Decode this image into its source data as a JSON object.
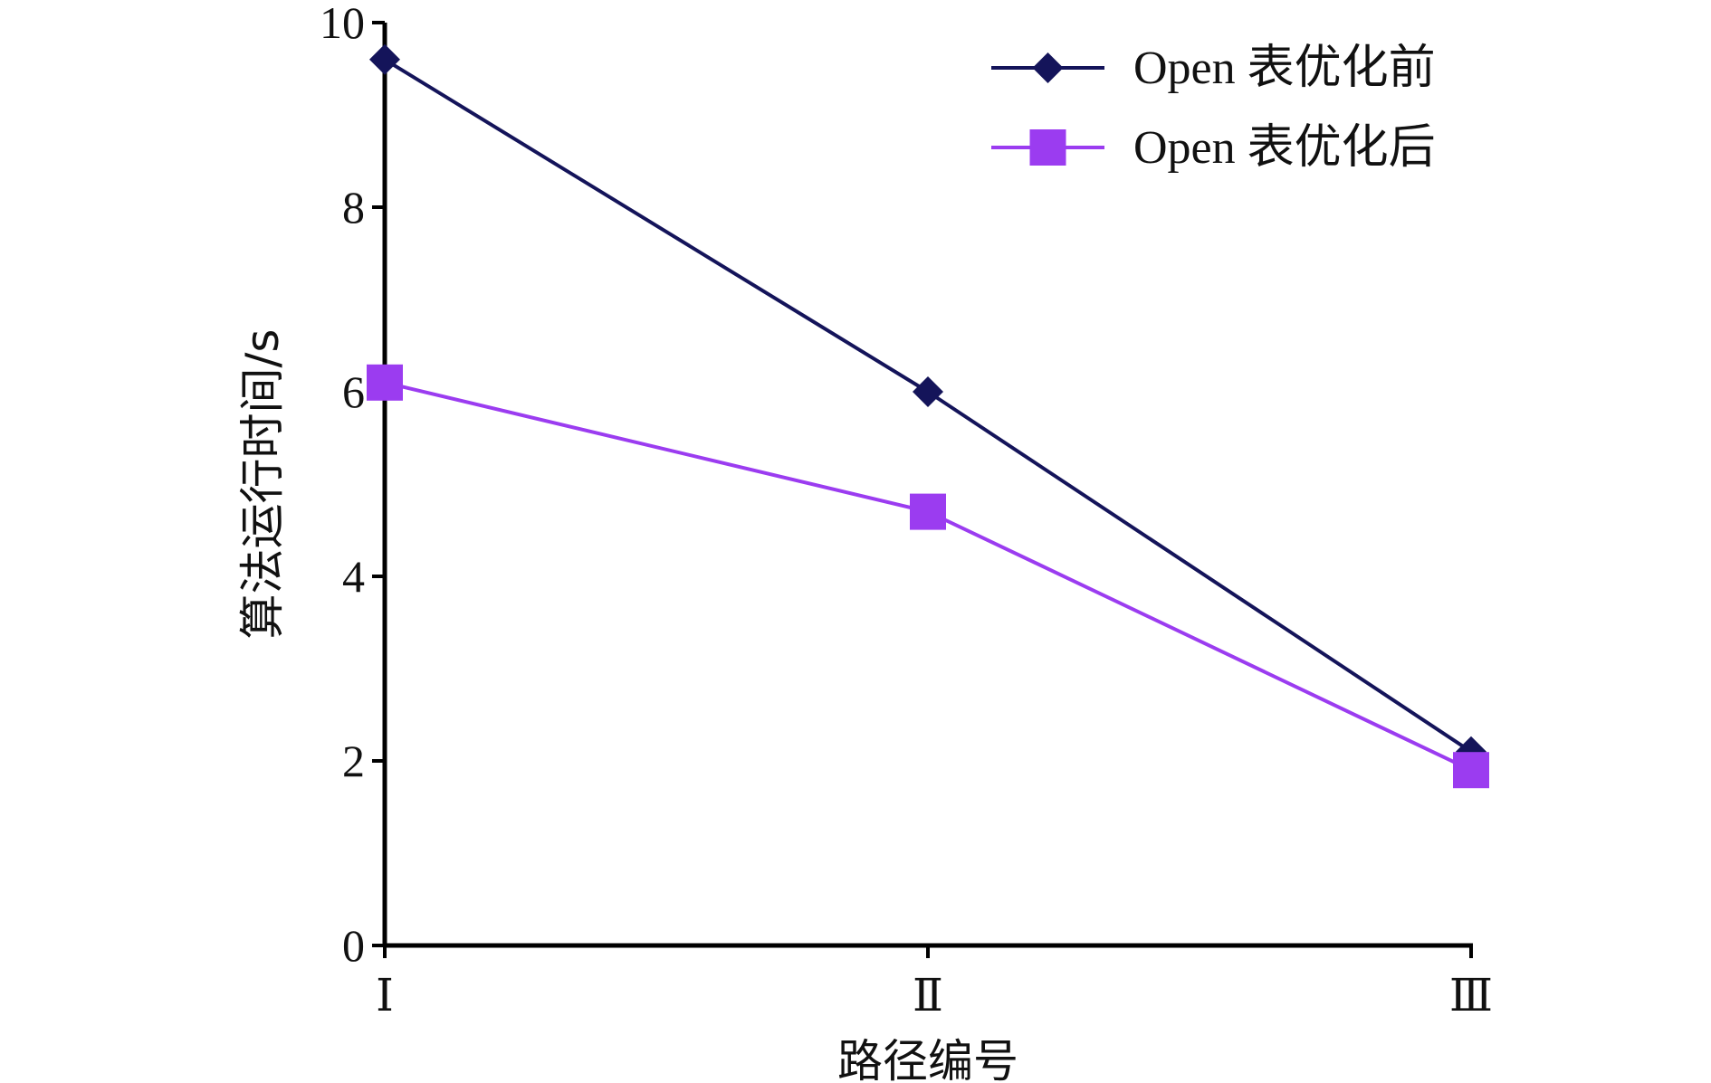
{
  "chart_data": {
    "type": "line",
    "categories": [
      "Ⅰ",
      "Ⅱ",
      "Ⅲ"
    ],
    "series": [
      {
        "name": "Open 表优化前",
        "values": [
          9.6,
          6.0,
          2.1
        ],
        "color": "#14145a",
        "marker": "diamond"
      },
      {
        "name": "Open 表优化后",
        "values": [
          6.1,
          4.7,
          1.9
        ],
        "color": "#9b3cf0",
        "marker": "square"
      }
    ],
    "xlabel": "路径编号",
    "ylabel": "算法运行时间/s",
    "ylim": [
      0,
      10
    ],
    "yticks": [
      0,
      2,
      4,
      6,
      8,
      10
    ],
    "grid": false,
    "legend": "top-right"
  }
}
